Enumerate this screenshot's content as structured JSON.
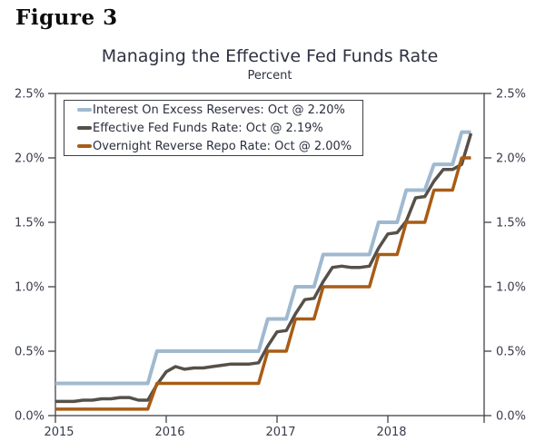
{
  "figure_label": "Figure 3",
  "chart": {
    "title": "Managing the Effective Fed Funds Rate",
    "subtitle": "Percent"
  },
  "legend": {
    "items": [
      {
        "label": "Interest On Excess Reserves: Oct @ 2.20%",
        "color": "#9fb9d0"
      },
      {
        "label": "Effective Fed Funds Rate: Oct @ 2.19%",
        "color": "#565049"
      },
      {
        "label": "Overnight Reverse Repo Rate: Oct @ 2.00%",
        "color": "#a85c15"
      }
    ]
  },
  "chart_data": {
    "type": "line",
    "title": "Managing the Effective Fed Funds Rate",
    "subtitle_unit": "Percent",
    "x_frequency": "monthly",
    "x_start": "2015-01",
    "x_end": "2018-10",
    "x_axis": {
      "tick_labels": [
        "2015",
        "2016",
        "2017",
        "2018"
      ],
      "tick_month_offsets": [
        0,
        12,
        24,
        36
      ]
    },
    "y_axis": {
      "min": 0.0,
      "max": 2.5,
      "tick_values": [
        0.0,
        0.5,
        1.0,
        1.5,
        2.0,
        2.5
      ],
      "tick_labels": [
        "0.0%",
        "0.5%",
        "1.0%",
        "1.5%",
        "2.0%",
        "2.5%"
      ],
      "mirrored_right_axis": true
    },
    "grid": "off",
    "legend_position": "top-left-inside-box",
    "series": [
      {
        "name": "Interest On Excess Reserves",
        "latest_label": "Oct @ 2.20%",
        "color": "#9fb9d0",
        "stroke_width": 4,
        "values": [
          0.25,
          0.25,
          0.25,
          0.25,
          0.25,
          0.25,
          0.25,
          0.25,
          0.25,
          0.25,
          0.25,
          0.5,
          0.5,
          0.5,
          0.5,
          0.5,
          0.5,
          0.5,
          0.5,
          0.5,
          0.5,
          0.5,
          0.5,
          0.75,
          0.75,
          0.75,
          1.0,
          1.0,
          1.0,
          1.25,
          1.25,
          1.25,
          1.25,
          1.25,
          1.25,
          1.5,
          1.5,
          1.5,
          1.75,
          1.75,
          1.75,
          1.95,
          1.95,
          1.95,
          2.2,
          2.2
        ]
      },
      {
        "name": "Effective Fed Funds Rate",
        "latest_label": "Oct @ 2.19%",
        "color": "#565049",
        "stroke_width": 3.5,
        "values": [
          0.11,
          0.11,
          0.11,
          0.12,
          0.12,
          0.13,
          0.13,
          0.14,
          0.14,
          0.12,
          0.12,
          0.24,
          0.34,
          0.38,
          0.36,
          0.37,
          0.37,
          0.38,
          0.39,
          0.4,
          0.4,
          0.4,
          0.41,
          0.54,
          0.65,
          0.66,
          0.79,
          0.9,
          0.91,
          1.04,
          1.15,
          1.16,
          1.15,
          1.15,
          1.16,
          1.3,
          1.41,
          1.42,
          1.51,
          1.69,
          1.7,
          1.82,
          1.91,
          1.91,
          1.95,
          2.19
        ]
      },
      {
        "name": "Overnight Reverse Repo Rate",
        "latest_label": "Oct @ 2.00%",
        "color": "#a85c15",
        "stroke_width": 3.5,
        "values": [
          0.05,
          0.05,
          0.05,
          0.05,
          0.05,
          0.05,
          0.05,
          0.05,
          0.05,
          0.05,
          0.05,
          0.25,
          0.25,
          0.25,
          0.25,
          0.25,
          0.25,
          0.25,
          0.25,
          0.25,
          0.25,
          0.25,
          0.25,
          0.5,
          0.5,
          0.5,
          0.75,
          0.75,
          0.75,
          1.0,
          1.0,
          1.0,
          1.0,
          1.0,
          1.0,
          1.25,
          1.25,
          1.25,
          1.5,
          1.5,
          1.5,
          1.75,
          1.75,
          1.75,
          2.0,
          2.0
        ]
      }
    ]
  }
}
